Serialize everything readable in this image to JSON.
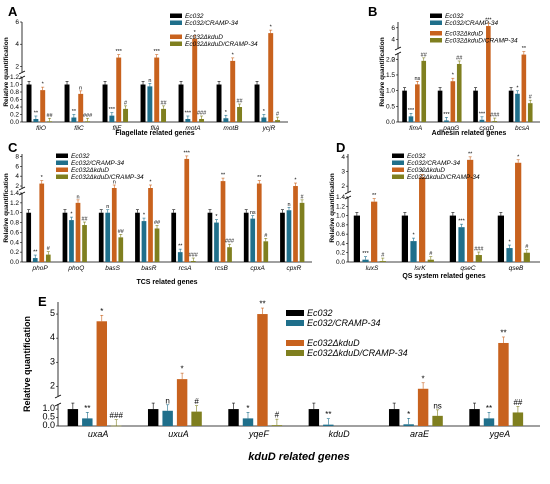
{
  "colors": {
    "wt": "#000000",
    "comp": "#1f6f8b",
    "mutant": "#c8621e",
    "mutcomp": "#7f7f1f",
    "axis": "#000000"
  },
  "legend_labels": {
    "wt": "Ec032",
    "comp": "Ec032/CRAMP-34",
    "mutant": "Ec032ΔkduD",
    "mutcomp": "Ec032ΔkduD/CRAMP-34"
  },
  "chart_data": [
    {
      "id": "A",
      "panel_label": "A",
      "type": "bar",
      "ylabel": "Relative quantification",
      "xlabel": "Flagellate related genes",
      "categories": [
        "fliO",
        "fliC",
        "fliE",
        "fliA",
        "motA",
        "motB",
        "ycjR"
      ],
      "lower_ticks": [
        "0.0",
        "0.2",
        "0.4",
        "0.6",
        "0.8",
        "1.0",
        "1.2"
      ],
      "upper_ticks": [
        "2",
        "4",
        "6"
      ],
      "break": {
        "lower_max": 1.2,
        "upper_min": 1.5,
        "upper_max": 6
      },
      "series": [
        {
          "name": "Ec032",
          "values": [
            1,
            1,
            1,
            1,
            1,
            1,
            1
          ],
          "sig": [
            "",
            "",
            "",
            "",
            "",
            "",
            ""
          ]
        },
        {
          "name": "Ec032/CRAMP-34",
          "values": [
            0.08,
            0.12,
            0.17,
            0.95,
            0.08,
            0.1,
            0.12
          ],
          "sig": [
            "**",
            "**",
            "***",
            "n",
            "***",
            "*",
            "*"
          ]
        },
        {
          "name": "Ec032ΔkduD",
          "values": [
            0.85,
            0.75,
            2.8,
            2.8,
            4.5,
            2.5,
            5.0
          ],
          "sig": [
            "*",
            "n",
            "***",
            "***",
            "*",
            "*",
            "*"
          ]
        },
        {
          "name": "Ec032ΔkduD/CRAMP-34",
          "values": [
            0.02,
            0.02,
            0.35,
            0.35,
            0.08,
            0.4,
            0.05
          ],
          "sig": [
            "##",
            "###",
            "#",
            "##",
            "###",
            "##",
            "#"
          ]
        }
      ]
    },
    {
      "id": "B",
      "panel_label": "B",
      "type": "bar",
      "ylabel": "Relative quantification",
      "xlabel": "Adhesin related genes",
      "categories": [
        "fimA",
        "papG",
        "csgD",
        "bcsA"
      ],
      "lower_ticks": [
        "0.0",
        "0.5",
        "1.0",
        "1.5",
        "2.0"
      ],
      "upper_ticks": [
        "2",
        "4",
        "6"
      ],
      "break": {
        "lower_max": 2.2,
        "upper_min": 2.5,
        "upper_max": 7
      },
      "series": [
        {
          "name": "Ec032",
          "values": [
            1,
            1,
            1,
            1
          ],
          "sig": [
            "",
            "",
            "",
            ""
          ]
        },
        {
          "name": "Ec032/CRAMP-34",
          "values": [
            0.18,
            0.05,
            0.07,
            0.9
          ],
          "sig": [
            "***",
            "***",
            "***",
            "*"
          ]
        },
        {
          "name": "Ec032ΔkduD",
          "values": [
            1.2,
            1.3,
            6.3,
            2.15
          ],
          "sig": [
            "ns",
            "*",
            "***",
            "**"
          ]
        },
        {
          "name": "Ec032ΔkduD/CRAMP-34",
          "values": [
            1.95,
            1.85,
            0.03,
            0.6
          ],
          "sig": [
            "##",
            "##",
            "###",
            "#"
          ]
        }
      ]
    },
    {
      "id": "C",
      "panel_label": "C",
      "type": "bar",
      "ylabel": "Relative quantification",
      "xlabel": "TCS related genes",
      "categories": [
        "phoP",
        "phoQ",
        "basS",
        "basR",
        "rcsA",
        "rcsB",
        "cpxA",
        "cpxR"
      ],
      "lower_ticks": [
        "0.0",
        "0.2",
        "0.4",
        "0.6",
        "0.8",
        "1.0",
        "1.2",
        "1.4"
      ],
      "upper_ticks": [
        "2",
        "4",
        "6",
        "8"
      ],
      "break": {
        "lower_max": 1.4,
        "upper_min": 1.6,
        "upper_max": 8.5
      },
      "series": [
        {
          "name": "Ec032",
          "values": [
            1,
            1,
            1,
            1,
            1,
            1,
            1,
            1
          ],
          "sig": [
            "",
            "",
            "",
            "",
            "",
            "",
            "",
            ""
          ]
        },
        {
          "name": "Ec032/CRAMP-34",
          "values": [
            0.08,
            0.85,
            1.0,
            0.83,
            0.2,
            0.8,
            0.88,
            1.05
          ],
          "sig": [
            "**",
            "*",
            "n",
            "*",
            "**",
            "*",
            "ns",
            "n"
          ]
        },
        {
          "name": "Ec032ΔkduD",
          "values": [
            2.5,
            1.2,
            1.5,
            1.5,
            7.5,
            3.0,
            2.5,
            2.0
          ],
          "sig": [
            "*",
            "n",
            "n",
            "*",
            "***",
            "**",
            "**",
            "*"
          ]
        },
        {
          "name": "Ec032ΔkduD/CRAMP-34",
          "values": [
            0.15,
            0.75,
            0.5,
            0.68,
            0.02,
            0.3,
            0.42,
            1.2
          ],
          "sig": [
            "#",
            "##",
            "##",
            "##",
            "###",
            "###",
            "#",
            "#"
          ]
        }
      ]
    },
    {
      "id": "D",
      "panel_label": "D",
      "type": "bar",
      "ylabel": "Relative quantification",
      "xlabel": "QS system related genes",
      "categories": [
        "luxS",
        "lsrK",
        "qseC",
        "qseB"
      ],
      "lower_ticks": [
        "0.0",
        "0.2",
        "0.4",
        "0.6",
        "0.8",
        "1.0",
        "1.2",
        "1.4"
      ],
      "upper_ticks": [
        "2",
        "3",
        "4"
      ],
      "break": {
        "lower_max": 1.4,
        "upper_min": 1.6,
        "upper_max": 4.2
      },
      "series": [
        {
          "name": "Ec032",
          "values": [
            1,
            1,
            1,
            1
          ],
          "sig": [
            "",
            "",
            "",
            ""
          ]
        },
        {
          "name": "Ec032/CRAMP-34",
          "values": [
            0.05,
            0.45,
            0.75,
            0.3
          ],
          "sig": [
            "***",
            "*",
            "***",
            "*"
          ]
        },
        {
          "name": "Ec032ΔkduD",
          "values": [
            1.3,
            2.6,
            3.8,
            3.6
          ],
          "sig": [
            "**",
            "*",
            "**",
            "*"
          ]
        },
        {
          "name": "Ec032ΔkduD/CRAMP-34",
          "values": [
            0.02,
            0.05,
            0.15,
            0.2
          ],
          "sig": [
            "#",
            "#",
            "###",
            "#"
          ]
        }
      ]
    },
    {
      "id": "E",
      "panel_label": "E",
      "type": "bar",
      "ylabel": "Relative quantification",
      "xlabel": "kduD related genes",
      "categories": [
        "uxaA",
        "uxuA",
        "yqeF",
        "kduD",
        "araE",
        "ygeA"
      ],
      "lower_ticks": [
        "0.0",
        "0.5",
        "1.0"
      ],
      "upper_ticks": [
        "2",
        "3",
        "4",
        "5"
      ],
      "break": {
        "lower_max": 1.3,
        "upper_min": 1.6,
        "upper_max": 5.5
      },
      "series": [
        {
          "name": "Ec032",
          "values": [
            1,
            1,
            1,
            1,
            1,
            1
          ],
          "sig": [
            "",
            "",
            "",
            "",
            "",
            ""
          ]
        },
        {
          "name": "Ec032/CRAMP-34",
          "values": [
            0.45,
            0.9,
            0.45,
            0.08,
            0.1,
            0.45
          ],
          "sig": [
            "**",
            "n",
            "*",
            "**",
            "*",
            "**"
          ]
        },
        {
          "name": "Ec032ΔkduD",
          "values": [
            4.7,
            2.3,
            5.0,
            0,
            1.9,
            3.8
          ],
          "sig": [
            "*",
            "*",
            "**",
            "",
            "*",
            "**"
          ]
        },
        {
          "name": "Ec032ΔkduD/CRAMP-34",
          "values": [
            0.02,
            0.85,
            0.05,
            0,
            0.6,
            0.8
          ],
          "sig": [
            "###",
            "#",
            "#",
            "",
            "ns",
            "##"
          ]
        }
      ]
    }
  ]
}
